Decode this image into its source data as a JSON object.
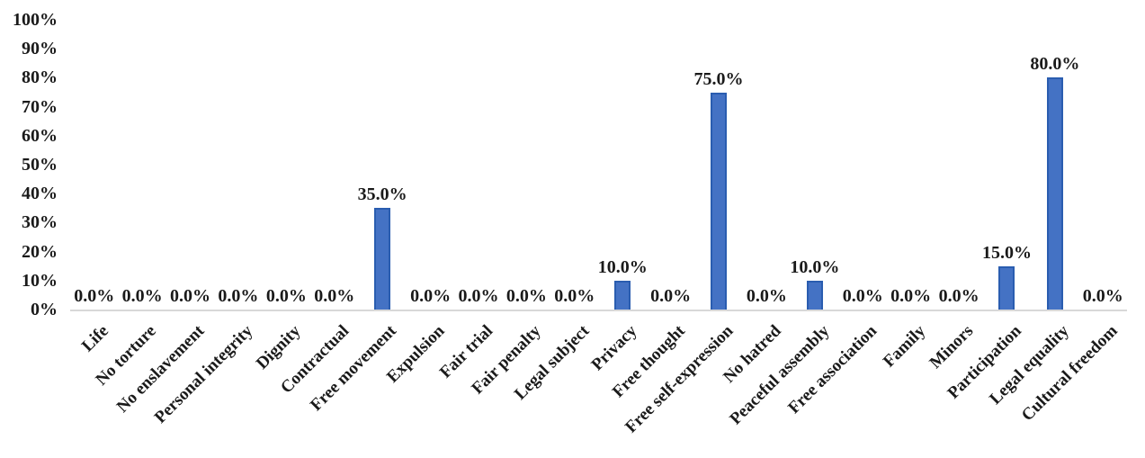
{
  "chart_data": {
    "type": "bar",
    "title": "",
    "xlabel": "",
    "ylabel": "",
    "categories": [
      "Life",
      "No torture",
      "No enslavement",
      "Personal integrity",
      "Dignity",
      "Contractual",
      "Free movement",
      "Expulsion",
      "Fair trial",
      "Fair penalty",
      "Legal subject",
      "Privacy",
      "Free thought",
      "Free self-expression",
      "No hatred",
      "Peaceful assembly",
      "Free association",
      "Family",
      "Minors",
      "Participation",
      "Legal equality",
      "Cultural freedom"
    ],
    "values": [
      0,
      0,
      0,
      0,
      0,
      0,
      35,
      0,
      0,
      0,
      0,
      10,
      0,
      75,
      0,
      10,
      0,
      0,
      0,
      15,
      80,
      0
    ],
    "value_labels": [
      "0.0%",
      "0.0%",
      "0.0%",
      "0.0%",
      "0.0%",
      "0.0%",
      "35.0%",
      "0.0%",
      "0.0%",
      "0.0%",
      "0.0%",
      "10.0%",
      "0.0%",
      "75.0%",
      "0.0%",
      "10.0%",
      "0.0%",
      "0.0%",
      "0.0%",
      "15.0%",
      "80.0%",
      "0.0%"
    ],
    "ylim": [
      0,
      100
    ],
    "ytick_labels": [
      "0%",
      "10%",
      "20%",
      "30%",
      "40%",
      "50%",
      "60%",
      "70%",
      "80%",
      "90%",
      "100%"
    ],
    "ytick_step": 10,
    "grid": false,
    "legend": null,
    "bar_fill_color": "#4472C4",
    "bar_border_color": "#2A5DB0",
    "axis_line_color": "#D8D8D8",
    "text_color": "#1a1a1a"
  }
}
